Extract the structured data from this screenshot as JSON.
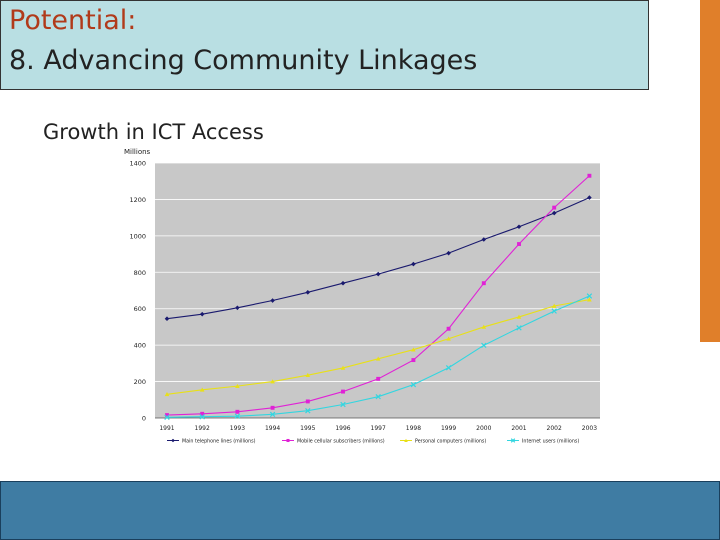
{
  "slide": {
    "title_line1": "Potential:",
    "title_line2": "8. Advancing Community Linkages",
    "subtitle": "Growth in ICT Access"
  },
  "colors": {
    "title_bg": "#b9dfe3",
    "accent_orange": "#e07f2a",
    "footer_blue": "#3f7ca3",
    "plot_bg": "#c8c8c8"
  },
  "chart_data": {
    "type": "line",
    "title": "",
    "xlabel": "",
    "ylabel": "Millions",
    "ylim": [
      0,
      1400
    ],
    "yticks": [
      0,
      200,
      400,
      600,
      800,
      1000,
      1200,
      1400
    ],
    "grid": true,
    "legend_position": "bottom",
    "categories": [
      "1991",
      "1992",
      "1993",
      "1994",
      "1995",
      "1996",
      "1997",
      "1998",
      "1999",
      "2000",
      "2001",
      "2002",
      "2003"
    ],
    "series": [
      {
        "name": "Main telephone lines (millions)",
        "color": "#1a1a6e",
        "marker": "diamond",
        "values": [
          545,
          570,
          605,
          645,
          690,
          740,
          790,
          845,
          905,
          980,
          1050,
          1125,
          1210
        ]
      },
      {
        "name": "Mobile cellular subscribers (millions)",
        "color": "#e022d6",
        "marker": "square",
        "values": [
          16,
          23,
          34,
          56,
          91,
          145,
          215,
          318,
          490,
          740,
          955,
          1155,
          1330
        ]
      },
      {
        "name": "Personal computers (millions)",
        "color": "#e8e018",
        "marker": "triangle",
        "values": [
          130,
          155,
          175,
          200,
          235,
          275,
          325,
          375,
          435,
          500,
          555,
          615,
          650
        ]
      },
      {
        "name": "Internet users (millions)",
        "color": "#33d6e0",
        "marker": "x",
        "values": [
          4,
          7,
          10,
          20,
          40,
          74,
          117,
          183,
          276,
          399,
          495,
          587,
          670
        ]
      }
    ]
  }
}
